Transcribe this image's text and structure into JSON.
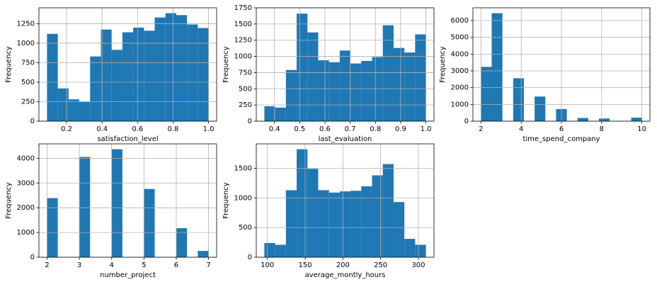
{
  "chart_data": [
    {
      "type": "histogram",
      "xlabel": "satisfaction_level",
      "ylabel": "Frequency",
      "color": "#1f77b4",
      "grid": true,
      "bins": [
        0.09,
        0.1507,
        0.2113,
        0.272,
        0.3327,
        0.3933,
        0.454,
        0.5147,
        0.5753,
        0.636,
        0.6967,
        0.7573,
        0.818,
        0.8787,
        0.9393,
        1.0
      ],
      "values": [
        1120,
        420,
        280,
        250,
        830,
        1175,
        915,
        1140,
        1200,
        1160,
        1330,
        1385,
        1360,
        1240,
        1195
      ],
      "xlim": [
        0.0445,
        1.0455
      ],
      "ylim": [
        0,
        1454
      ],
      "xticks": [
        0.2,
        0.4,
        0.6,
        0.8,
        {
          "value": 1,
          "label": "1.0"
        }
      ],
      "yticks": [
        0,
        250,
        500,
        750,
        1000,
        1250
      ]
    },
    {
      "type": "histogram",
      "xlabel": "last_evaluation",
      "ylabel": "Frequency",
      "color": "#1f77b4",
      "grid": true,
      "bins": [
        0.36,
        0.4027,
        0.4453,
        0.488,
        0.5307,
        0.5733,
        0.616,
        0.6587,
        0.7013,
        0.744,
        0.7867,
        0.8293,
        0.872,
        0.9147,
        0.9573,
        1.0
      ],
      "values": [
        230,
        210,
        790,
        1660,
        1370,
        940,
        910,
        1090,
        890,
        930,
        990,
        1480,
        1130,
        1060,
        1340
      ],
      "xlim": [
        0.328,
        1.032
      ],
      "ylim": [
        0,
        1750
      ],
      "xticks": [
        0.4,
        0.5,
        0.6,
        0.7,
        0.8,
        0.9,
        {
          "value": 1,
          "label": "1.0"
        }
      ],
      "yticks": [
        0,
        250,
        500,
        750,
        1000,
        1250,
        1500,
        1750
      ]
    },
    {
      "type": "histogram",
      "xlabel": "time_spend_company",
      "ylabel": "Frequency",
      "color": "#1f77b4",
      "grid": true,
      "bins": [
        2,
        2.5333,
        3.0667,
        3.6,
        4.1333,
        4.6667,
        5.2,
        5.7333,
        6.2667,
        6.8,
        7.3333,
        7.8667,
        8.4,
        8.9333,
        9.4667,
        10
      ],
      "values": [
        3240,
        6440,
        0,
        2560,
        0,
        1470,
        0,
        720,
        0,
        190,
        0,
        160,
        0,
        0,
        210
      ],
      "xlim": [
        1.6,
        10.4
      ],
      "ylim": [
        0,
        6762
      ],
      "xticks": [
        2,
        4,
        6,
        8,
        10
      ],
      "yticks": [
        0,
        1000,
        2000,
        3000,
        4000,
        5000,
        6000
      ]
    },
    {
      "type": "histogram",
      "xlabel": "number_project",
      "ylabel": "Frequency",
      "color": "#1f77b4",
      "grid": true,
      "bins": [
        2,
        2.3333,
        2.6667,
        3,
        3.3333,
        3.6667,
        4,
        4.3333,
        4.6667,
        5,
        5.3333,
        5.6667,
        6,
        6.3333,
        6.6667,
        7
      ],
      "values": [
        2390,
        0,
        0,
        4055,
        0,
        0,
        4365,
        0,
        0,
        2760,
        0,
        0,
        1175,
        0,
        255
      ],
      "xlim": [
        1.75,
        7.25
      ],
      "ylim": [
        0,
        4583
      ],
      "xticks": [
        2,
        3,
        4,
        5,
        6,
        7
      ],
      "yticks": [
        0,
        1000,
        2000,
        3000,
        4000
      ]
    },
    {
      "type": "histogram",
      "xlabel": "average_montly_hours",
      "ylabel": "Frequency",
      "color": "#1f77b4",
      "grid": true,
      "bins": [
        96,
        110.27,
        124.53,
        138.8,
        153.07,
        167.33,
        181.6,
        195.87,
        210.13,
        224.4,
        238.67,
        252.93,
        267.2,
        281.47,
        295.73,
        310
      ],
      "values": [
        240,
        210,
        1130,
        1820,
        1490,
        1130,
        1090,
        1110,
        1120,
        1195,
        1380,
        1570,
        930,
        310,
        210
      ],
      "xlim": [
        85.3,
        320.7
      ],
      "ylim": [
        0,
        1911
      ],
      "xticks": [
        100,
        150,
        200,
        250,
        300
      ],
      "yticks": [
        0,
        500,
        1000,
        1500
      ]
    }
  ]
}
